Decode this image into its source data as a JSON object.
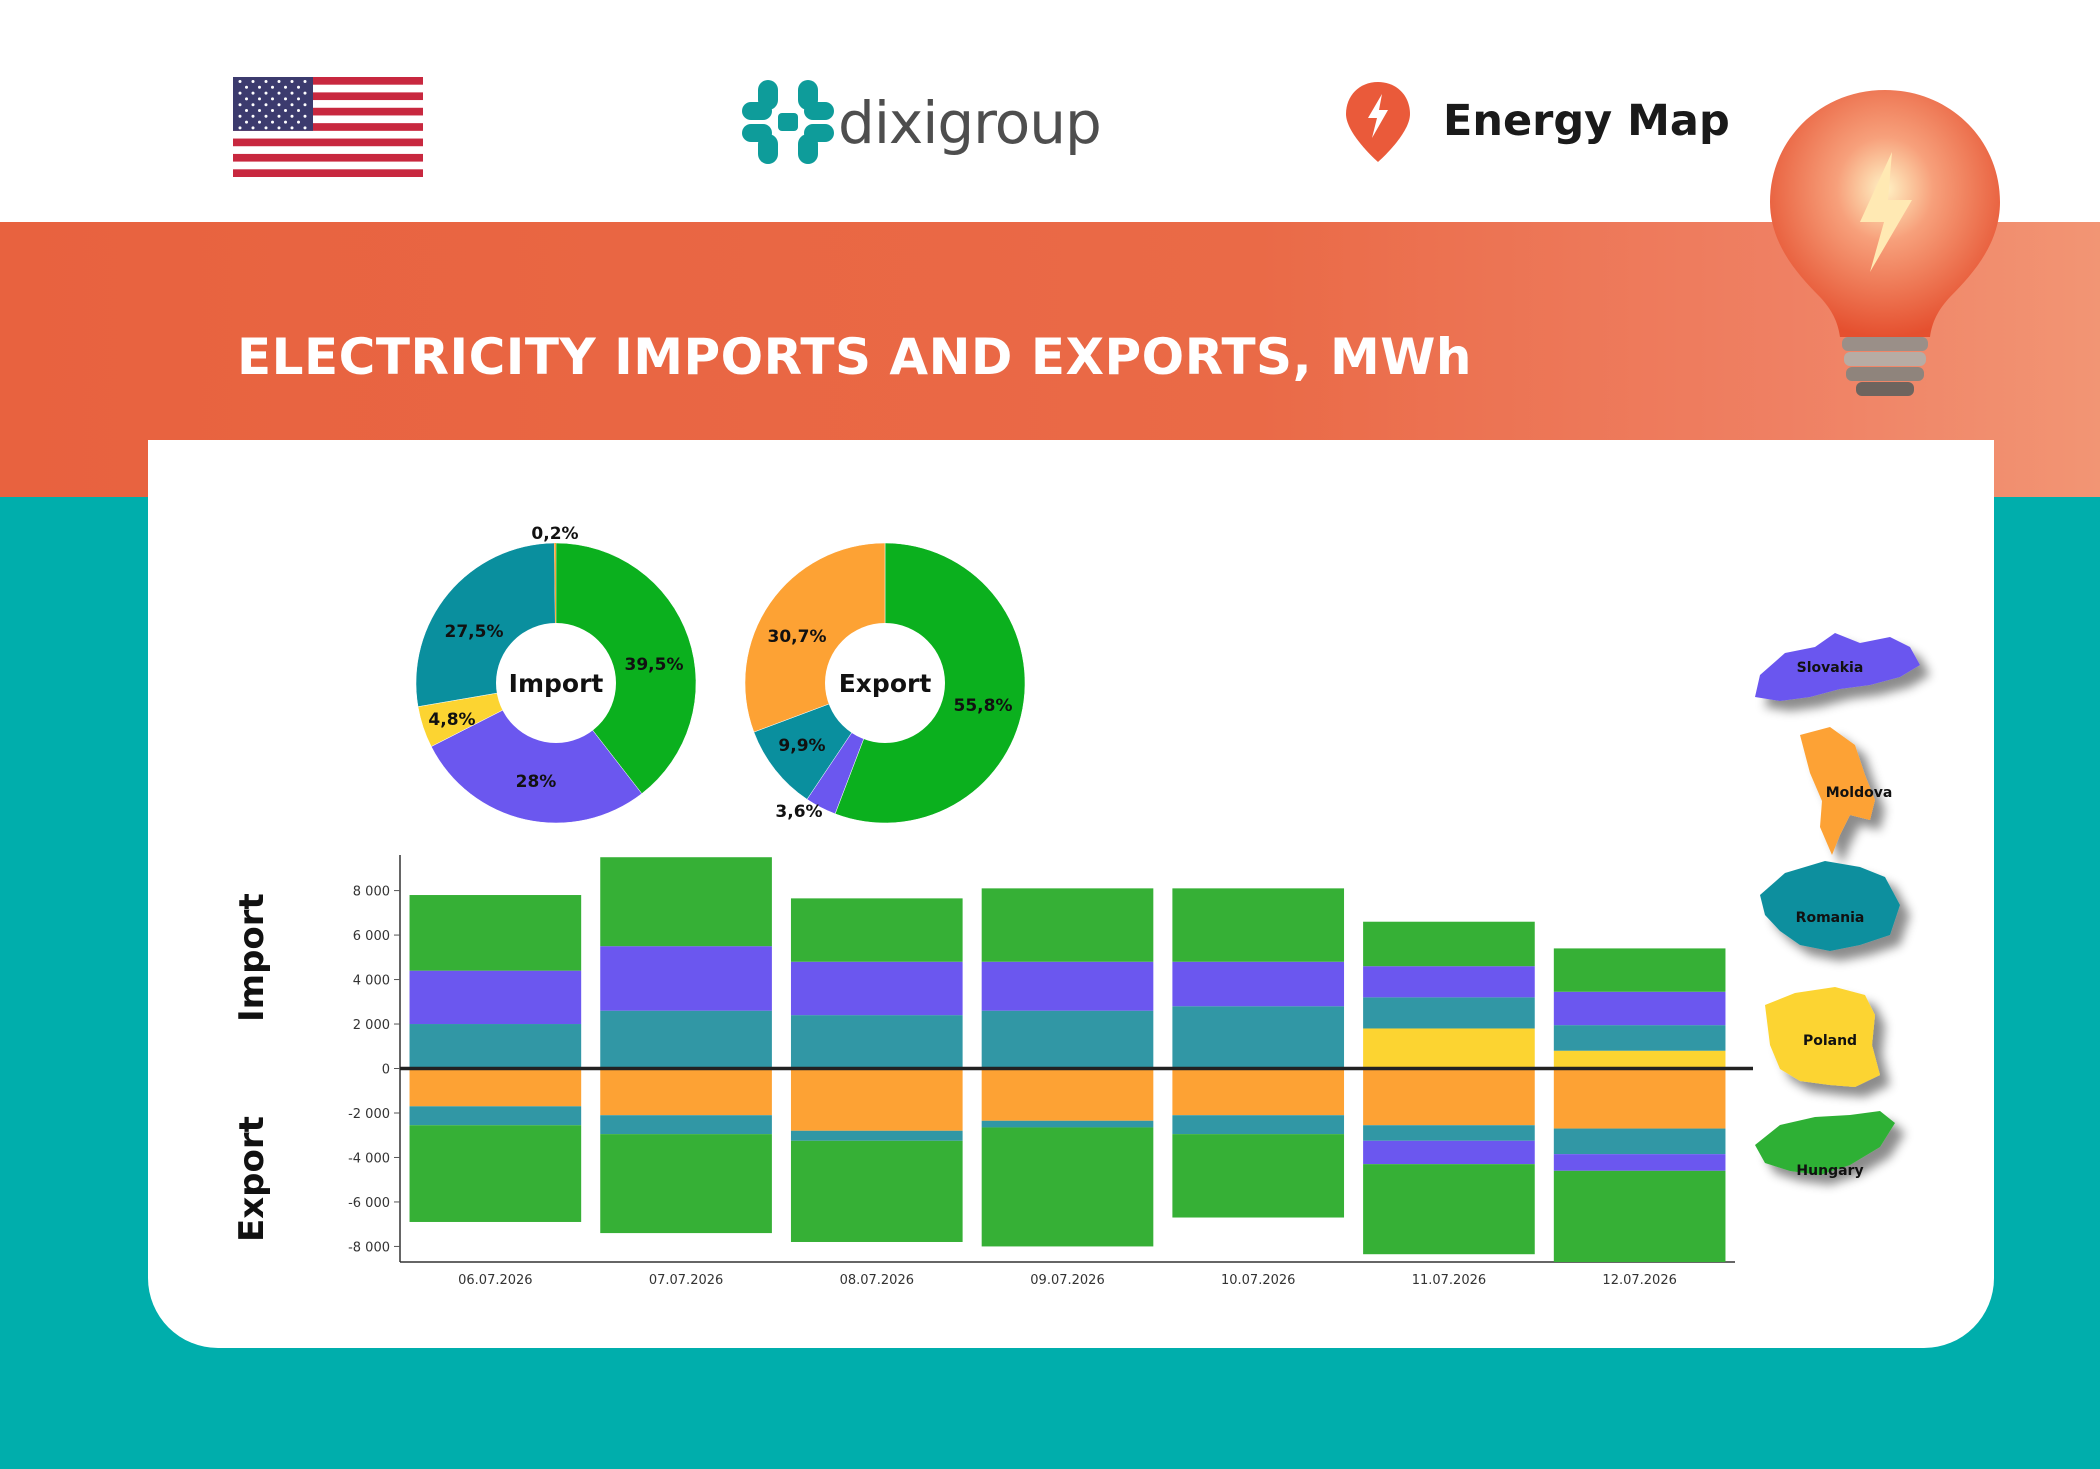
{
  "header": {
    "logo_text": "dixigroup",
    "product_name": "Energy Map",
    "title": "ELECTRICITY IMPORTS AND EXPORTS, MWh",
    "flag_icon": "us-flag-icon"
  },
  "colors": {
    "banner": "#e8623f",
    "background": "#00aeac",
    "Slovakia": "#6b57ef",
    "Moldova": "#fda234",
    "Romania": "#0f8f9e",
    "Poland": "#fcd431",
    "Hungary": "#2db034"
  },
  "legend": [
    {
      "label": "Slovakia",
      "color": "#6b57ef"
    },
    {
      "label": "Moldova",
      "color": "#fda234"
    },
    {
      "label": "Romania",
      "color": "#0f8f9e"
    },
    {
      "label": "Poland",
      "color": "#fcd431"
    },
    {
      "label": "Hungary",
      "color": "#2db034"
    }
  ],
  "side_labels": {
    "import": "Import",
    "export": "Export"
  },
  "chart_data": [
    {
      "type": "pie",
      "title": "",
      "center_label": "Import",
      "slices": [
        {
          "country": "Hungary",
          "value": 39.5,
          "label": "39,5%",
          "color": "#0bb01e"
        },
        {
          "country": "Slovakia",
          "value": 28.0,
          "label": "28%",
          "color": "#6b57ef"
        },
        {
          "country": "Poland",
          "value": 4.8,
          "label": "4,8%",
          "color": "#fcd431"
        },
        {
          "country": "Romania",
          "value": 27.5,
          "label": "27,5%",
          "color": "#0a8f9e"
        },
        {
          "country": "Moldova",
          "value": 0.2,
          "label": "0,2%",
          "color": "#fda234"
        }
      ]
    },
    {
      "type": "pie",
      "title": "",
      "center_label": "Export",
      "slices": [
        {
          "country": "Hungary",
          "value": 55.8,
          "label": "55,8%",
          "color": "#0bb01e"
        },
        {
          "country": "Slovakia",
          "value": 3.6,
          "label": "3,6%",
          "color": "#6b57ef"
        },
        {
          "country": "Romania",
          "value": 9.9,
          "label": "9,9%",
          "color": "#0a8f9e"
        },
        {
          "country": "Moldova",
          "value": 30.7,
          "label": "30,7%",
          "color": "#fda234"
        }
      ]
    },
    {
      "type": "bar",
      "stacked": true,
      "title": "",
      "xlabel": "",
      "ylabel": "",
      "categories": [
        "06.07.2026",
        "07.07.2026",
        "08.07.2026",
        "09.07.2026",
        "10.07.2026",
        "11.07.2026",
        "12.07.2026"
      ],
      "ylim": [
        -8700,
        9600
      ],
      "yticks": [
        8000,
        6000,
        4000,
        2000,
        0,
        -2000,
        -4000,
        -6000,
        -8000
      ],
      "ytick_labels": [
        "8 000",
        "6 000",
        "4 000",
        "2 000",
        "0",
        "-2 000",
        "-4 000",
        "-6 000",
        "-8 000"
      ],
      "series": [
        {
          "name": "Poland",
          "color": "#fcd431",
          "values": [
            0,
            0,
            0,
            0,
            0,
            1800,
            800
          ]
        },
        {
          "name": "Romania",
          "color": "#3197a5",
          "values": [
            2000,
            2600,
            2400,
            2600,
            2800,
            1400,
            1150
          ]
        },
        {
          "name": "Slovakia",
          "color": "#6b57ef",
          "values": [
            2400,
            2900,
            2400,
            2200,
            2000,
            1400,
            1500
          ]
        },
        {
          "name": "Hungary",
          "color": "#36b036",
          "values": [
            3400,
            4000,
            2850,
            3300,
            3300,
            2000,
            1950
          ]
        },
        {
          "name": "Moldova",
          "color": "#fda234",
          "values": [
            -1700,
            -2100,
            -2800,
            -2350,
            -2100,
            -2550,
            -2700
          ]
        },
        {
          "name": "Romania",
          "color": "#3197a5",
          "values": [
            -850,
            -850,
            -450,
            -300,
            -850,
            -700,
            -1150
          ]
        },
        {
          "name": "Slovakia",
          "color": "#6b57ef",
          "values": [
            0,
            0,
            0,
            0,
            0,
            -1050,
            -750
          ]
        },
        {
          "name": "Hungary",
          "color": "#36b036",
          "values": [
            -4350,
            -4450,
            -4550,
            -5350,
            -3750,
            -4050,
            -4100
          ]
        }
      ]
    }
  ]
}
